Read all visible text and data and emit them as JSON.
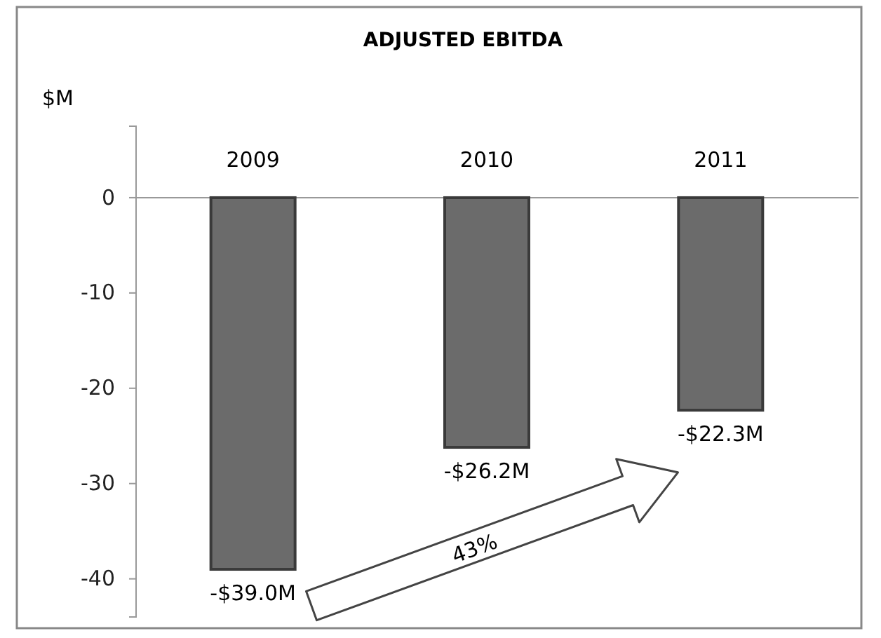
{
  "chart_data": {
    "type": "bar",
    "title": "ADJUSTED EBITDA",
    "ylabel": "$M",
    "categories": [
      "2009",
      "2010",
      "2011"
    ],
    "values": [
      -39.0,
      -26.2,
      -22.3
    ],
    "value_labels": [
      "-$39.0M",
      "-$26.2M",
      "-$22.3M"
    ],
    "color": "#6b6b6b",
    "ylim": [
      -44,
      7.5
    ],
    "yticks": [
      0,
      -10,
      -20,
      -30,
      -40
    ],
    "grid": false,
    "annotations": [
      "43%"
    ]
  }
}
